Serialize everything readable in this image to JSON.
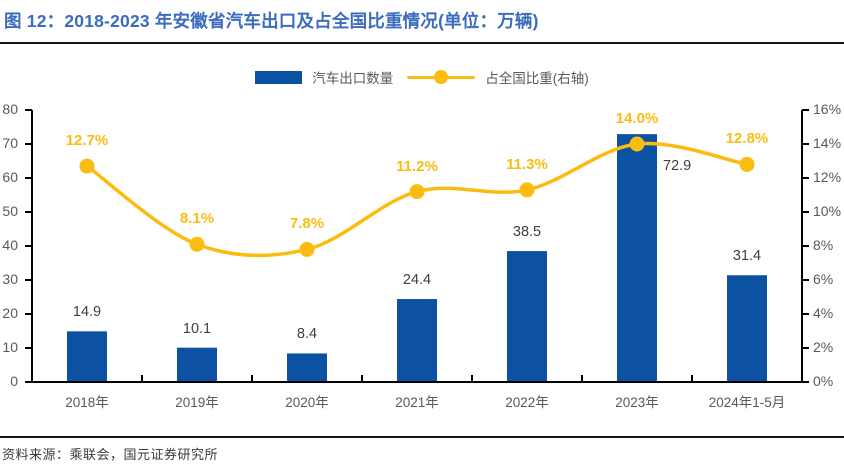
{
  "title": "图 12：2018-2023 年安徽省汽车出口及占全国比重情况(单位：万辆)",
  "legend": {
    "bars_label": "汽车出口数量",
    "line_label": "占全国比重(右轴)"
  },
  "footer": {
    "source": "资料来源：乘联会，国元证券研究所"
  },
  "colors": {
    "title": "#3B6CBE",
    "bar": "#0D52A2",
    "line": "#FBBC10",
    "axis": "#000000",
    "tick_label": "#595959",
    "value_label": "#404040",
    "pct_label": "#FBBC10"
  },
  "chart_data": {
    "type": "bar",
    "subtype": "bar+line-dual-axis",
    "title": "2018-2023 年安徽省汽车出口及占全国比重情况(单位：万辆)",
    "categories": [
      "2018年",
      "2019年",
      "2020年",
      "2021年",
      "2022年",
      "2023年",
      "2024年1-5月"
    ],
    "series": [
      {
        "name": "汽车出口数量",
        "type": "bar",
        "axis": "left",
        "values": [
          14.9,
          10.1,
          8.4,
          24.4,
          38.5,
          72.9,
          31.4
        ],
        "labels": [
          "14.9",
          "10.1",
          "8.4",
          "24.4",
          "38.5",
          "72.9",
          "31.4"
        ],
        "label_placement": [
          "above",
          "above",
          "above",
          "above",
          "above",
          "right",
          "above"
        ]
      },
      {
        "name": "占全国比重(右轴)",
        "type": "line",
        "axis": "right",
        "values": [
          12.7,
          8.1,
          7.8,
          11.2,
          11.3,
          14.0,
          12.8
        ],
        "labels": [
          "12.7%",
          "8.1%",
          "7.8%",
          "11.2%",
          "11.3%",
          "14.0%",
          "12.8%"
        ]
      }
    ],
    "left_axis": {
      "min": 0,
      "max": 80,
      "step": 10,
      "tick_labels": [
        "0",
        "10",
        "20",
        "30",
        "40",
        "50",
        "60",
        "70",
        "80"
      ]
    },
    "right_axis": {
      "min": 0,
      "max": 16,
      "step": 2,
      "tick_labels": [
        "0%",
        "2%",
        "4%",
        "6%",
        "8%",
        "10%",
        "12%",
        "14%",
        "16%"
      ]
    },
    "grid": false,
    "legend_position": "top-center",
    "xlabel": "",
    "ylabel": ""
  }
}
